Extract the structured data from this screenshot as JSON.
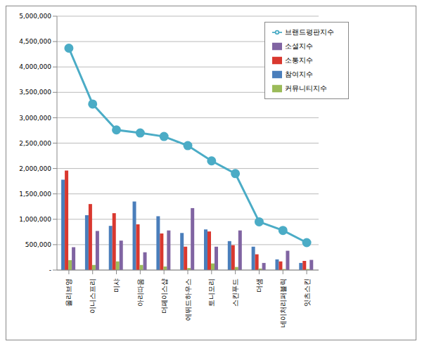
{
  "chart_data": {
    "type": "bar",
    "categories": [
      "올리브영",
      "이니스프리",
      "미샤",
      "아리따움",
      "더페이스샵",
      "에뛰드하우스",
      "토니모리",
      "스킨푸드",
      "더샘",
      "네이처리퍼블릭",
      "잇츠스킨"
    ],
    "series": [
      {
        "name": "참여지수",
        "type": "bar",
        "color": "#4a7ebb",
        "values": [
          1780000,
          1080000,
          870000,
          1350000,
          1060000,
          730000,
          800000,
          570000,
          460000,
          210000,
          140000
        ]
      },
      {
        "name": "소통지수",
        "type": "bar",
        "color": "#d9382f",
        "values": [
          1960000,
          1300000,
          1120000,
          900000,
          720000,
          460000,
          760000,
          490000,
          310000,
          170000,
          180000
        ]
      },
      {
        "name": "커뮤니티지수",
        "type": "bar",
        "color": "#9bbb59",
        "values": [
          195000,
          100000,
          170000,
          100000,
          70000,
          40000,
          130000,
          60000,
          30000,
          20000,
          20000
        ]
      },
      {
        "name": "소셜지수",
        "type": "bar",
        "color": "#8064a2",
        "values": [
          450000,
          770000,
          580000,
          350000,
          780000,
          1220000,
          460000,
          780000,
          140000,
          380000,
          200000
        ]
      },
      {
        "name": "브랜드평판지수",
        "type": "line",
        "color": "#4bacc6",
        "marker": "circle",
        "values": [
          4370000,
          3270000,
          2760000,
          2700000,
          2630000,
          2450000,
          2150000,
          1900000,
          950000,
          780000,
          540000
        ]
      }
    ],
    "ylim": [
      0,
      5000000
    ],
    "yticks": [
      {
        "value": 0,
        "label": "-"
      },
      {
        "value": 500000,
        "label": "500,000"
      },
      {
        "value": 1000000,
        "label": "1,000,000"
      },
      {
        "value": 1500000,
        "label": "1,500,000"
      },
      {
        "value": 2000000,
        "label": "2,000,000"
      },
      {
        "value": 2500000,
        "label": "2,500,000"
      },
      {
        "value": 3000000,
        "label": "3,000,000"
      },
      {
        "value": 3500000,
        "label": "3,500,000"
      },
      {
        "value": 4000000,
        "label": "4,000,000"
      },
      {
        "value": 4500000,
        "label": "4,500,000"
      },
      {
        "value": 5000000,
        "label": "5,000,000"
      }
    ],
    "grid": true,
    "legend": "upper right"
  }
}
